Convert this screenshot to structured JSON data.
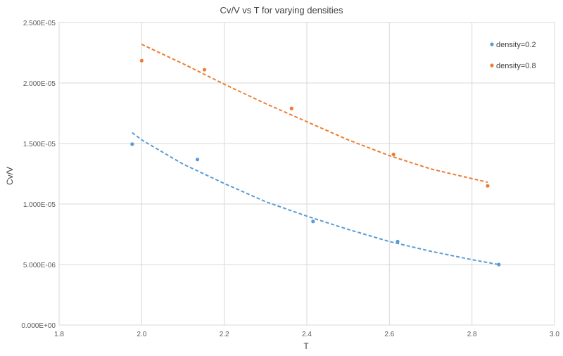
{
  "chart_data": {
    "type": "scatter",
    "title": "Cv/V vs T for varying densities",
    "xlabel": "T",
    "ylabel": "Cv/V",
    "xlim": [
      1.8,
      3.0
    ],
    "ylim": [
      0,
      2.5e-05
    ],
    "x_ticks": [
      1.8,
      2.0,
      2.2,
      2.4,
      2.6,
      2.8,
      3.0
    ],
    "x_tick_labels": [
      "1.8",
      "2.0",
      "2.2",
      "2.4",
      "2.6",
      "2.8",
      "3.0"
    ],
    "y_ticks": [
      0,
      5e-06,
      1e-05,
      1.5e-05,
      2e-05,
      2.5e-05
    ],
    "y_tick_labels": [
      "0.000E+00",
      "5.000E-06",
      "1.000E-05",
      "1.500E-05",
      "2.000E-05",
      "2.500E-05"
    ],
    "grid": true,
    "legend_position": "top-right",
    "series": [
      {
        "name": "density=0.2",
        "color": "#5B9BD5",
        "points": [
          {
            "x": 1.977,
            "y": 1.495e-05
          },
          {
            "x": 2.135,
            "y": 1.368e-05
          },
          {
            "x": 2.415,
            "y": 8.56e-06
          },
          {
            "x": 2.62,
            "y": 6.9e-06
          },
          {
            "x": 2.865,
            "y": 5e-06
          }
        ],
        "trendline": {
          "style": "dashed",
          "points": [
            {
              "x": 1.977,
              "y": 1.59e-05
            },
            {
              "x": 2.0,
              "y": 1.53e-05
            },
            {
              "x": 2.1,
              "y": 1.33e-05
            },
            {
              "x": 2.2,
              "y": 1.17e-05
            },
            {
              "x": 2.3,
              "y": 1.02e-05
            },
            {
              "x": 2.4,
              "y": 9e-06
            },
            {
              "x": 2.5,
              "y": 7.9e-06
            },
            {
              "x": 2.6,
              "y": 6.9e-06
            },
            {
              "x": 2.7,
              "y": 6.1e-06
            },
            {
              "x": 2.8,
              "y": 5.4e-06
            },
            {
              "x": 2.865,
              "y": 5e-06
            }
          ]
        }
      },
      {
        "name": "density=0.8",
        "color": "#ED7D31",
        "points": [
          {
            "x": 2.0,
            "y": 2.185e-05
          },
          {
            "x": 2.152,
            "y": 2.11e-05
          },
          {
            "x": 2.363,
            "y": 1.79e-05
          },
          {
            "x": 2.61,
            "y": 1.41e-05
          },
          {
            "x": 2.838,
            "y": 1.15e-05
          }
        ],
        "trendline": {
          "style": "dashed",
          "points": [
            {
              "x": 2.0,
              "y": 2.32e-05
            },
            {
              "x": 2.1,
              "y": 2.16e-05
            },
            {
              "x": 2.2,
              "y": 1.99e-05
            },
            {
              "x": 2.3,
              "y": 1.83e-05
            },
            {
              "x": 2.4,
              "y": 1.68e-05
            },
            {
              "x": 2.5,
              "y": 1.53e-05
            },
            {
              "x": 2.6,
              "y": 1.4e-05
            },
            {
              "x": 2.7,
              "y": 1.29e-05
            },
            {
              "x": 2.8,
              "y": 1.21e-05
            },
            {
              "x": 2.838,
              "y": 1.18e-05
            }
          ]
        }
      }
    ]
  }
}
